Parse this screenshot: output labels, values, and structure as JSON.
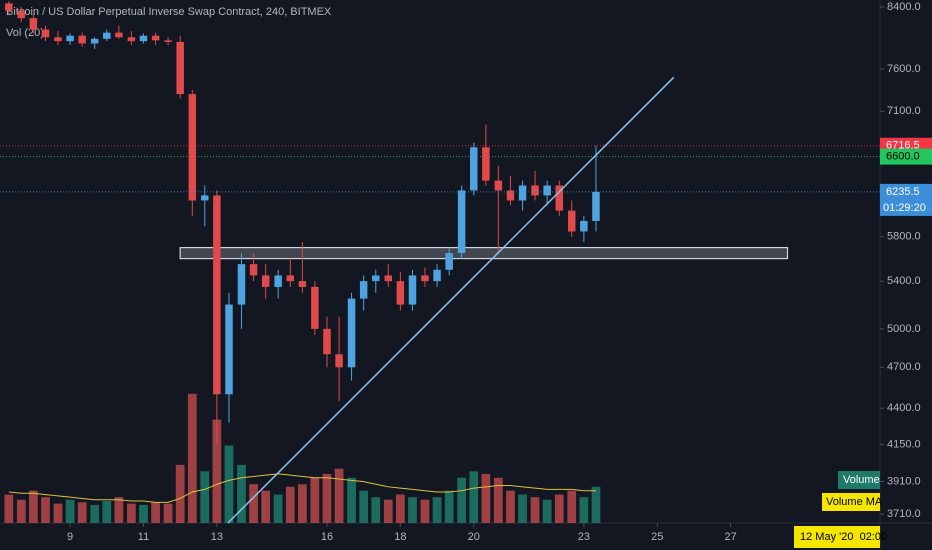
{
  "chart_data": {
    "type": "candlestick",
    "title": "Bitcoin / US Dollar Perpetual Inverse Swap Contract, 240, BITMEX",
    "subtitle": "Vol (20)",
    "log_scale": true,
    "grid": false,
    "xlim": [
      7.09,
      31.07
    ],
    "xticks": [
      9,
      11,
      13,
      16,
      18,
      20,
      23,
      25,
      27
    ],
    "ylim": [
      3657,
      8495
    ],
    "yticks": [
      {
        "value": 8400,
        "label": "8400.0"
      },
      {
        "value": 7600,
        "label": "7600.0"
      },
      {
        "value": 7100,
        "label": "7100.0"
      },
      {
        "value": 5800,
        "label": "5800.0"
      },
      {
        "value": 5400,
        "label": "5400.0"
      },
      {
        "value": 5000,
        "label": "5000.0"
      },
      {
        "value": 4700,
        "label": "4700.0"
      },
      {
        "value": 4400,
        "label": "4400.0"
      },
      {
        "value": 4150,
        "label": "4150.0"
      },
      {
        "value": 3910,
        "label": "3910.0"
      },
      {
        "value": 3710,
        "label": "3710.0"
      }
    ],
    "up_color": "#4fa3e0",
    "down_color": "#e04a4a",
    "x": [
      7.33,
      7.67,
      8,
      8.33,
      8.67,
      9,
      9.33,
      9.67,
      10,
      10.33,
      10.67,
      11,
      11.33,
      11.67,
      12,
      12.33,
      12.67,
      13,
      13.33,
      13.67,
      14,
      14.33,
      14.67,
      15,
      15.33,
      15.67,
      16,
      16.33,
      16.67,
      17,
      17.33,
      17.67,
      18,
      18.33,
      18.67,
      19,
      19.33,
      19.67,
      20,
      20.33,
      20.67,
      21,
      21.33,
      21.67,
      22,
      22.33,
      22.67,
      23,
      23.33
    ],
    "open": [
      8450,
      8350,
      8250,
      8100,
      8000,
      7950,
      8020,
      7920,
      7980,
      8060,
      8000,
      7950,
      8020,
      7960,
      7940,
      7300,
      6150,
      6200,
      4500,
      5200,
      5550,
      5450,
      5350,
      5450,
      5400,
      5350,
      5000,
      4800,
      4700,
      5250,
      5400,
      5450,
      5400,
      5200,
      5450,
      5400,
      5500,
      5650,
      6250,
      6700,
      6350,
      6250,
      6150,
      6300,
      6200,
      6300,
      6050,
      5850,
      5950
    ],
    "high": [
      8480,
      8400,
      8300,
      8150,
      8080,
      8050,
      8060,
      8000,
      8100,
      8150,
      8080,
      8050,
      8060,
      8000,
      8020,
      7350,
      6300,
      6250,
      5300,
      5650,
      5650,
      5550,
      5500,
      5600,
      5750,
      5400,
      5100,
      5100,
      5300,
      5450,
      5500,
      5550,
      5480,
      5500,
      5520,
      5550,
      5700,
      6300,
      6750,
      6950,
      6500,
      6400,
      6350,
      6450,
      6350,
      6350,
      6150,
      6000,
      6716.5
    ],
    "low": [
      8300,
      8200,
      8050,
      7950,
      7900,
      7900,
      7880,
      7850,
      7950,
      7980,
      7900,
      7920,
      7900,
      7900,
      7250,
      6000,
      5900,
      4150,
      4300,
      5000,
      5400,
      5250,
      5250,
      5350,
      5300,
      4950,
      4700,
      4450,
      4600,
      5150,
      5300,
      5350,
      5150,
      5150,
      5350,
      5350,
      5450,
      5600,
      6200,
      6300,
      5650,
      6100,
      6050,
      6150,
      6100,
      6000,
      5800,
      5750,
      5850
    ],
    "close": [
      8350,
      8250,
      8100,
      8000,
      7950,
      8020,
      7920,
      7980,
      8060,
      8000,
      7950,
      8020,
      7960,
      7940,
      7300,
      6150,
      6200,
      4500,
      5200,
      5550,
      5450,
      5350,
      5450,
      5400,
      5350,
      5000,
      4800,
      4700,
      5250,
      5400,
      5450,
      5400,
      5200,
      5450,
      5400,
      5500,
      5650,
      6250,
      6700,
      6350,
      6250,
      6150,
      6300,
      6200,
      6300,
      6050,
      5850,
      5950,
      6235.5
    ],
    "volume": {
      "name": "Volume",
      "axis": "y2",
      "up_color": "#1f7a6a",
      "down_color": "#b8484a",
      "values": [
        22,
        18,
        25,
        20,
        15,
        18,
        16,
        14,
        17,
        20,
        15,
        14,
        16,
        15,
        45,
        100,
        40,
        80,
        60,
        45,
        30,
        25,
        22,
        28,
        30,
        35,
        38,
        42,
        35,
        25,
        20,
        18,
        22,
        20,
        18,
        20,
        25,
        35,
        40,
        38,
        35,
        25,
        22,
        20,
        18,
        22,
        25,
        20,
        28
      ]
    },
    "volume_ma": {
      "name": "Volume MA",
      "axis": "y2",
      "color": "#e0c33a",
      "values": [
        24,
        23,
        23,
        22,
        21,
        20,
        19,
        18,
        18,
        18,
        17,
        17,
        16,
        16,
        19,
        24,
        26,
        30,
        33,
        35,
        36,
        37,
        38,
        37,
        36,
        35,
        35,
        34,
        33,
        32,
        30,
        28,
        27,
        26,
        25,
        24,
        24,
        25,
        27,
        28,
        29,
        29,
        28,
        27,
        26,
        26,
        26,
        25,
        25
      ]
    },
    "y2lim": [
      0,
      130
    ],
    "price_lines": [
      {
        "value": 6716.5,
        "color": "#f23645"
      },
      {
        "value": 6600,
        "label": "6600.0",
        "color": "#22c55e"
      }
    ],
    "last_price_color": "#3d8ed8",
    "countdown": "01:29:20",
    "cursor_label": "12 May '20  02:00",
    "zone": {
      "x": [
        12,
        28.55
      ],
      "y": [
        5600,
        5700
      ]
    },
    "trendline": {
      "x": [
        13.3,
        25.45
      ],
      "y": [
        3657,
        7500
      ]
    }
  }
}
